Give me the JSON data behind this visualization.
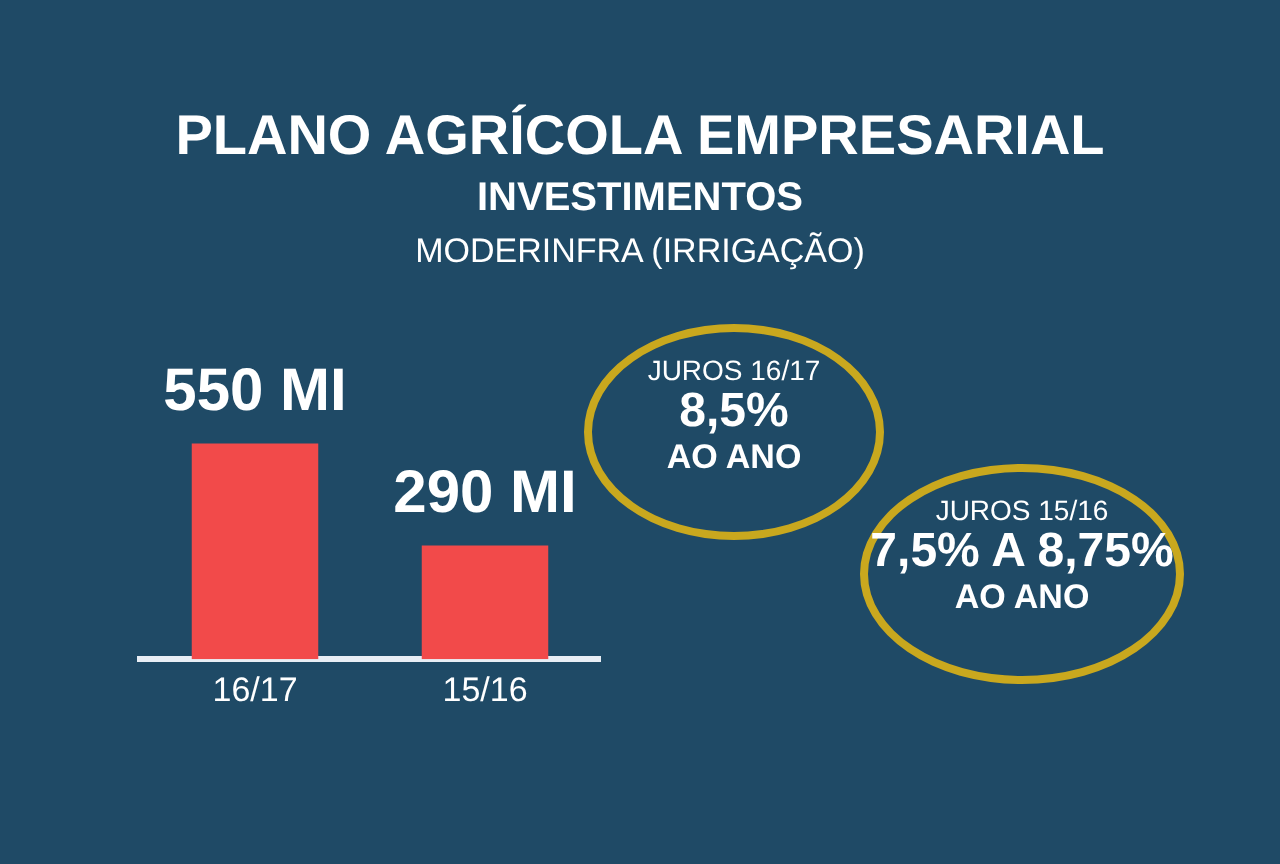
{
  "chart_data": {
    "type": "bar",
    "title": "PLANO AGRÍCOLA EMPRESARIAL",
    "subtitle": "INVESTIMENTOS",
    "annotations": [
      "MODERINFRA (IRRIGAÇÃO)",
      "JUROS 16/17\n8,5%\nAO ANO",
      "JUROS 15/16\n7,5% A 8,75%\nAO ANO"
    ],
    "categories": [
      "16/17",
      "15/16"
    ],
    "values": [
      550,
      290
    ],
    "color": "#f24a4a",
    "value_labels": [
      "550 MI",
      "290 MI"
    ]
  }
}
